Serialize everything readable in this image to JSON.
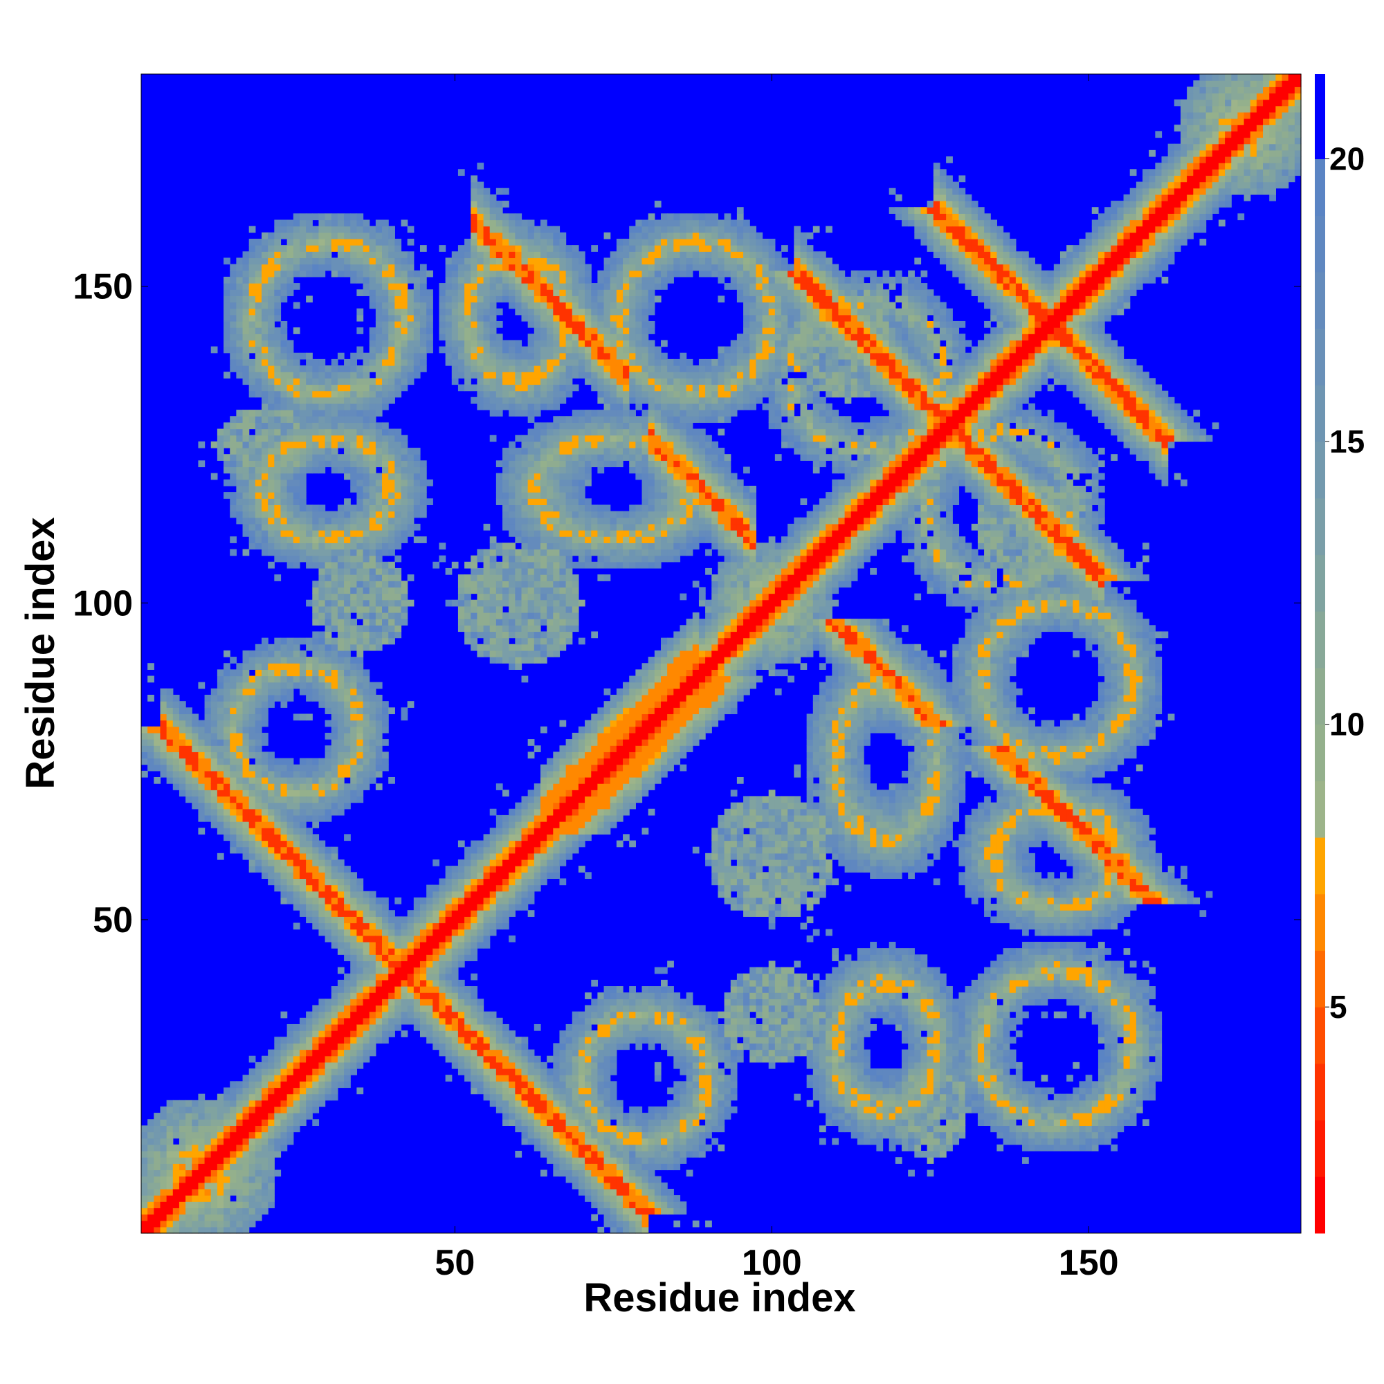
{
  "chart_data": {
    "type": "heatmap",
    "title": "",
    "xlabel": "Residue index",
    "ylabel": "Residue index",
    "x_range": [
      1,
      183
    ],
    "y_range": [
      1,
      183
    ],
    "x_ticks": [
      50,
      100,
      150
    ],
    "y_ticks": [
      50,
      100,
      150
    ],
    "x_tick_labels": [
      "50",
      "100",
      "150"
    ],
    "y_tick_labels": [
      "50",
      "100",
      "150"
    ],
    "symmetric": true,
    "background_value": 21.5,
    "colorbar": {
      "range": [
        1,
        21.5
      ],
      "ticks": [
        5,
        10,
        15,
        20
      ],
      "tick_labels": [
        "5",
        "10",
        "15",
        "20"
      ],
      "levels": [
        {
          "max": 2,
          "color": "#ff0000"
        },
        {
          "max": 3,
          "color": "#ff1a00"
        },
        {
          "max": 4,
          "color": "#ff3300"
        },
        {
          "max": 5,
          "color": "#ff4d00"
        },
        {
          "max": 6,
          "color": "#ff6a00"
        },
        {
          "max": 7,
          "color": "#ff8800"
        },
        {
          "max": 8,
          "color": "#ffa500"
        },
        {
          "max": 9,
          "color": "#9db48a"
        },
        {
          "max": 10,
          "color": "#94b08c"
        },
        {
          "max": 11,
          "color": "#8fac90"
        },
        {
          "max": 12,
          "color": "#88a898"
        },
        {
          "max": 13,
          "color": "#80a3a0"
        },
        {
          "max": 14,
          "color": "#7a9ea8"
        },
        {
          "max": 15,
          "color": "#7399ae"
        },
        {
          "max": 16,
          "color": "#6e95b2"
        },
        {
          "max": 17,
          "color": "#6990b8"
        },
        {
          "max": 18,
          "color": "#648bbc"
        },
        {
          "max": 19,
          "color": "#5f87c0"
        },
        {
          "max": 20,
          "color": "#5a84c4"
        },
        {
          "max": 21.5,
          "color": "#0000ff"
        }
      ]
    },
    "features": [
      {
        "kind": "diagonal",
        "from": 1,
        "to": 183,
        "width": 2
      },
      {
        "kind": "anti",
        "center": [
          42,
          42
        ],
        "span": 38,
        "width": 2
      },
      {
        "kind": "anti",
        "center": [
          65,
          148
        ],
        "span": 12,
        "width": 2
      },
      {
        "kind": "anti",
        "center": [
          89,
          118
        ],
        "span": 8,
        "width": 2
      },
      {
        "kind": "anti",
        "center": [
          128,
          128
        ],
        "span": 24,
        "width": 2
      },
      {
        "kind": "anti",
        "center": [
          144,
          144
        ],
        "span": 18,
        "width": 2
      },
      {
        "kind": "parallel",
        "from": [
          64,
          68
        ],
        "to": [
          88,
          92
        ],
        "width": 2
      },
      {
        "kind": "blob",
        "center": [
          10,
          10
        ],
        "radius": 12
      },
      {
        "kind": "blob",
        "center": [
          175,
          175
        ],
        "radius": 11
      },
      {
        "kind": "blob",
        "center": [
          100,
          100
        ],
        "radius": 10
      },
      {
        "kind": "ring",
        "center": [
          30,
          145
        ],
        "rx": 12,
        "ry": 12
      },
      {
        "kind": "ring",
        "center": [
          88,
          145
        ],
        "rx": 12,
        "ry": 12
      },
      {
        "kind": "ring",
        "center": [
          136,
          115
        ],
        "rx": 12,
        "ry": 12
      },
      {
        "kind": "ring",
        "center": [
          30,
          118
        ],
        "rx": 10,
        "ry": 8
      },
      {
        "kind": "ring",
        "center": [
          75,
          118
        ],
        "rx": 12,
        "ry": 8
      },
      {
        "kind": "ring",
        "center": [
          145,
          30
        ],
        "rx": 12,
        "ry": 12
      },
      {
        "kind": "ring",
        "center": [
          145,
          88
        ],
        "rx": 12,
        "ry": 12
      },
      {
        "kind": "ring",
        "center": [
          118,
          30
        ],
        "rx": 8,
        "ry": 10
      },
      {
        "kind": "ring",
        "center": [
          118,
          75
        ],
        "rx": 8,
        "ry": 12
      },
      {
        "kind": "ring",
        "center": [
          80,
          25
        ],
        "rx": 10,
        "ry": 10
      },
      {
        "kind": "ring",
        "center": [
          25,
          80
        ],
        "rx": 10,
        "ry": 10
      },
      {
        "kind": "ring",
        "center": [
          145,
          60
        ],
        "rx": 10,
        "ry": 8
      },
      {
        "kind": "ring",
        "center": [
          60,
          145
        ],
        "rx": 8,
        "ry": 10
      },
      {
        "kind": "patch",
        "center": [
          35,
          100
        ],
        "rx": 8,
        "ry": 8
      },
      {
        "kind": "patch",
        "center": [
          100,
          35
        ],
        "rx": 8,
        "ry": 8
      },
      {
        "kind": "patch",
        "center": [
          112,
          140
        ],
        "rx": 8,
        "ry": 8
      },
      {
        "kind": "patch",
        "center": [
          140,
          112
        ],
        "rx": 8,
        "ry": 8
      },
      {
        "kind": "patch",
        "center": [
          60,
          100
        ],
        "rx": 10,
        "ry": 10
      },
      {
        "kind": "patch",
        "center": [
          100,
          60
        ],
        "rx": 10,
        "ry": 10
      },
      {
        "kind": "patch",
        "center": [
          125,
          20
        ],
        "rx": 6,
        "ry": 8
      },
      {
        "kind": "patch",
        "center": [
          20,
          125
        ],
        "rx": 8,
        "ry": 6
      }
    ]
  }
}
